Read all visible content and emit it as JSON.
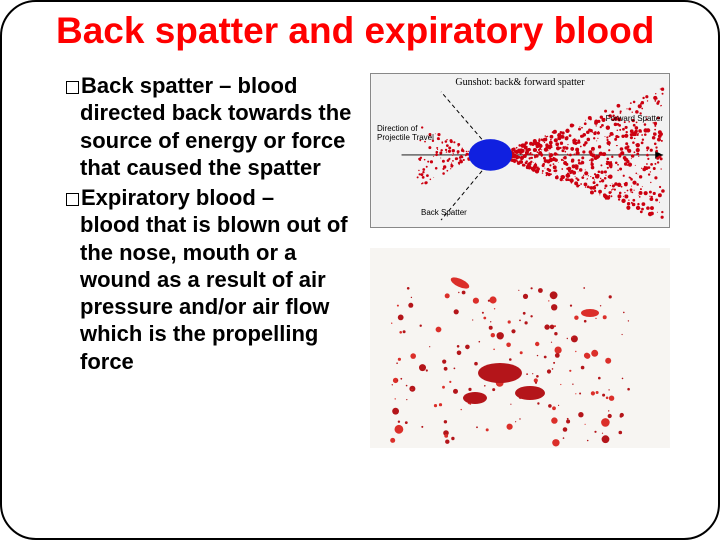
{
  "title": "Back spatter and expiratory blood",
  "bullets": [
    {
      "lead": "Back spatter – blood",
      "rest": "directed back towards the source of energy or force that caused the spatter"
    },
    {
      "lead": "Expiratory blood –",
      "rest": "blood that is blown out of the nose, mouth or a wound as a result of air pressure and/or air flow which is the propelling force"
    }
  ],
  "diagram1": {
    "title": "Gunshot: back& forward spatter",
    "forward_label": "Forward Spatter",
    "back_label": "Back Spatter",
    "direction_label": "Direction of\nProjectile Travel",
    "target_color": "#1020e0",
    "spatter_color": "#cc0010",
    "background_color": "#f2f2f2",
    "axis_color": "#000000"
  },
  "diagram2": {
    "background_color": "#f7f5f2",
    "blood_color": "#b4151a",
    "blood_color_light": "#db2f2a",
    "speckle_count": 260
  },
  "colors": {
    "title": "#ff0000",
    "body_text": "#000000",
    "slide_bg": "#ffffff",
    "slide_border": "#000000"
  }
}
